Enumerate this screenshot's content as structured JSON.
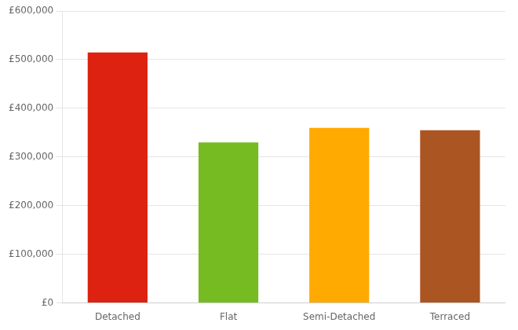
{
  "chart_data": {
    "type": "bar",
    "categories": [
      "Detached",
      "Flat",
      "Semi-Detached",
      "Terraced"
    ],
    "values": [
      515000,
      330000,
      360000,
      355000
    ],
    "colors": [
      "#dd2211",
      "#77bb22",
      "#ffaa00",
      "#aa5522"
    ],
    "ylim": [
      0,
      600000
    ],
    "yticks": [
      {
        "value": 0,
        "label": "£0"
      },
      {
        "value": 100000,
        "label": "£100,000"
      },
      {
        "value": 200000,
        "label": "£200,000"
      },
      {
        "value": 300000,
        "label": "£300,000"
      },
      {
        "value": 400000,
        "label": "£400,000"
      },
      {
        "value": 500000,
        "label": "£500,000"
      },
      {
        "value": 600000,
        "label": "£600,000"
      }
    ],
    "grid": true
  }
}
